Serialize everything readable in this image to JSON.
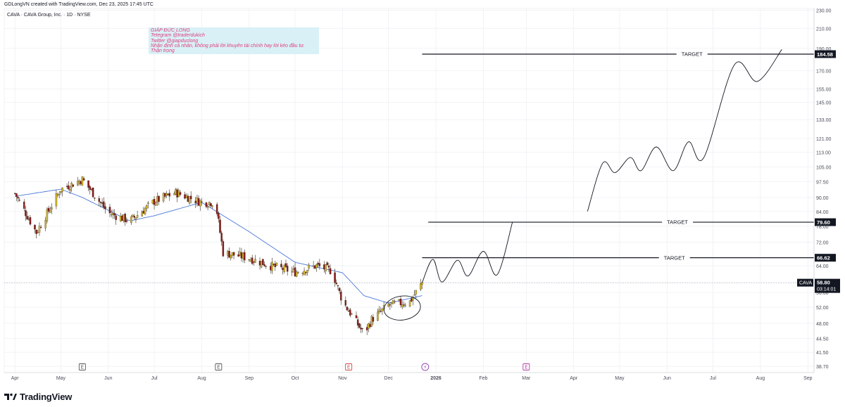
{
  "header": {
    "credit": "GDLongVN created with TradingView.com, Dec 23, 2025 17:45 UTC",
    "symbol_title": "CAVA · CAVA Group, Inc. · 1D · NYSE"
  },
  "note": {
    "lines": [
      "GIÁP ĐỨC LONG",
      "Tetegram @traderdukich",
      "Twitter @giapduclong",
      "Nhận định cá nhân, không phải lời khuyên tài chính hay lời kéo đầu tư.",
      "Thận trọng"
    ],
    "background": "#d9f0f7",
    "text_color": "#e0407a"
  },
  "brand": {
    "name": "TradingView"
  },
  "colors": {
    "up": "#d4b82a",
    "down": "#8b1a1a",
    "ma": "#4a78d8",
    "target": "#131722",
    "grid": "#eef0f3"
  },
  "chart_data": {
    "type": "candlestick",
    "symbol": "CAVA",
    "title": "CAVA · CAVA Group, Inc. · 1D · NYSE",
    "y_scale": "log",
    "ylim": [
      37.5,
      232
    ],
    "price_ticks": [
      "230.00",
      "210.00",
      "190.00",
      "170.00",
      "155.00",
      "145.00",
      "133.00",
      "121.00",
      "113.00",
      "105.00",
      "97.50",
      "90.00",
      "84.00",
      "78.00",
      "72.00",
      "64.00",
      "58.80",
      "56.00",
      "52.00",
      "48.00",
      "44.50",
      "41.50",
      "38.70"
    ],
    "x_ticks": [
      "Apr",
      "May",
      "Jun",
      "Jul",
      "Aug",
      "Sep",
      "Oct",
      "Nov",
      "Dec",
      "2026",
      "Feb",
      "Mar",
      "Apr",
      "May",
      "Jun",
      "Jul",
      "Aug",
      "Sep"
    ],
    "events": [
      "E",
      "E",
      "E",
      "⚡",
      "E"
    ],
    "current": {
      "label": "CAVA",
      "price": "58.80",
      "countdown": "03:14:01"
    },
    "targets": [
      {
        "label": "TARGET",
        "price": "184.58"
      },
      {
        "label": "TARGET",
        "price": "79.60"
      },
      {
        "label": "TARGET",
        "price": "66.62"
      }
    ],
    "price_path": [
      [
        "2025-04-01",
        91.9
      ],
      [
        "2025-04-15",
        75.6
      ],
      [
        "2025-05-01",
        93.9
      ],
      [
        "2025-05-15",
        98.6
      ],
      [
        "2025-06-01",
        83.4
      ],
      [
        "2025-06-15",
        80.1
      ],
      [
        "2025-07-01",
        88.3
      ],
      [
        "2025-07-15",
        92.3
      ],
      [
        "2025-08-01",
        87.9
      ],
      [
        "2025-08-10",
        88.0
      ],
      [
        "2025-08-15",
        68.4
      ],
      [
        "2025-09-01",
        66.5
      ],
      [
        "2025-09-15",
        64.0
      ],
      [
        "2025-10-01",
        62.0
      ],
      [
        "2025-10-15",
        64.0
      ],
      [
        "2025-10-25",
        62.4
      ],
      [
        "2025-11-01",
        53.6
      ],
      [
        "2025-11-15",
        45.5
      ],
      [
        "2025-11-20",
        48.9
      ],
      [
        "2025-12-01",
        52.5
      ],
      [
        "2025-12-15",
        53.5
      ],
      [
        "2025-12-23",
        58.8
      ]
    ],
    "ma_path": [
      [
        "2025-04-01",
        90.6
      ],
      [
        "2025-05-01",
        93.9
      ],
      [
        "2025-05-15",
        90.1
      ],
      [
        "2025-06-15",
        80.1
      ],
      [
        "2025-07-01",
        82.2
      ],
      [
        "2025-08-01",
        87.9
      ],
      [
        "2025-09-01",
        75.9
      ],
      [
        "2025-10-01",
        65.1
      ],
      [
        "2025-11-01",
        61.8
      ],
      [
        "2025-11-15",
        55.1
      ],
      [
        "2025-12-01",
        53.1
      ],
      [
        "2025-12-23",
        55.1
      ]
    ],
    "projection_path": [
      [
        "2025-12-23",
        58.8
      ],
      [
        "2025-12-30",
        66.1
      ],
      [
        "2026-01-05",
        59.0
      ],
      [
        "2026-01-15",
        65.8
      ],
      [
        "2026-01-22",
        60.8
      ],
      [
        "2026-02-01",
        68.8
      ],
      [
        "2026-02-10",
        61.2
      ],
      [
        "2026-02-20",
        79.6
      ]
    ],
    "projection_path_2": [
      [
        "2026-04-10",
        84.0
      ],
      [
        "2026-04-20",
        107.0
      ],
      [
        "2026-04-28",
        102.0
      ],
      [
        "2026-05-08",
        110.0
      ],
      [
        "2026-05-15",
        103.0
      ],
      [
        "2026-05-25",
        116.0
      ],
      [
        "2026-06-05",
        103.0
      ],
      [
        "2026-06-15",
        119.0
      ],
      [
        "2026-06-25",
        110.0
      ],
      [
        "2026-07-15",
        175.0
      ],
      [
        "2026-07-30",
        161.0
      ],
      [
        "2026-08-15",
        189.0
      ]
    ]
  }
}
